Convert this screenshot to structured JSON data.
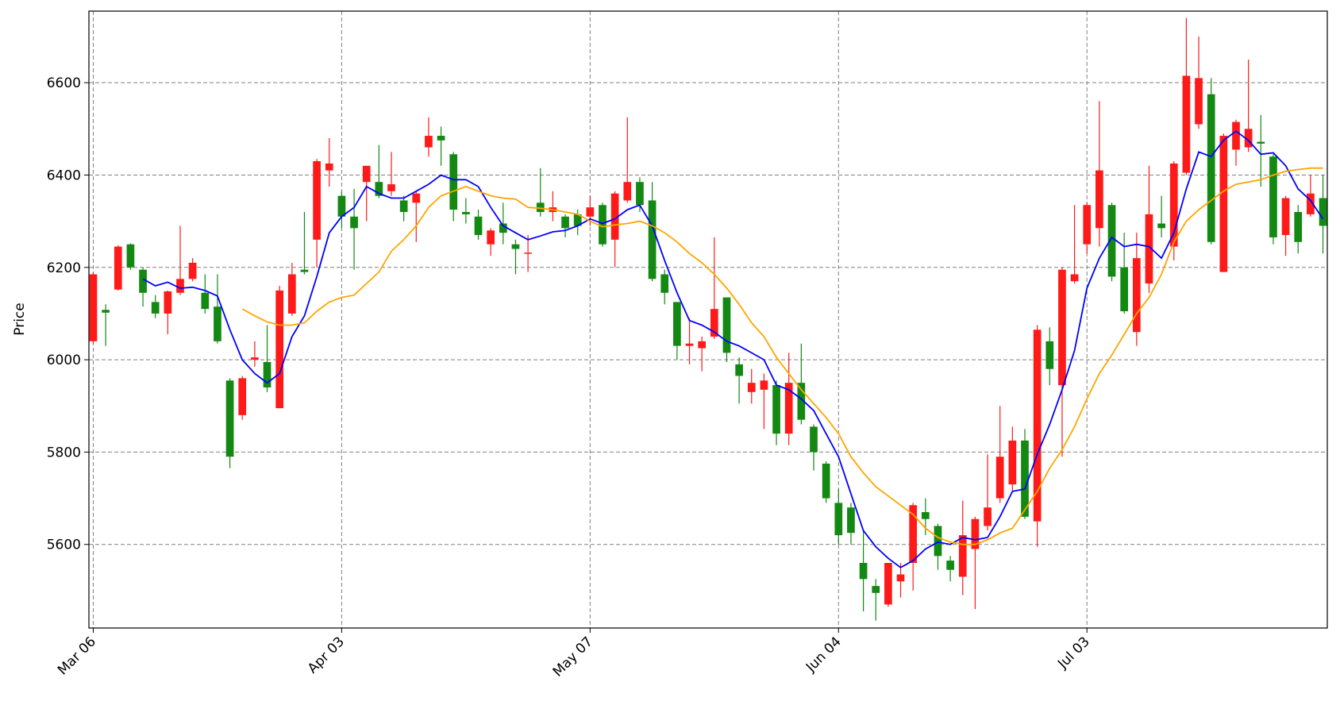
{
  "chart_data": {
    "type": "candlestick",
    "ylabel": "Price",
    "categories": [
      "Mar 06",
      null,
      null,
      null,
      null,
      null,
      null,
      null,
      null,
      null,
      null,
      null,
      null,
      null,
      null,
      null,
      null,
      null,
      null,
      null,
      "Apr 03",
      null,
      null,
      null,
      null,
      null,
      null,
      null,
      null,
      null,
      null,
      null,
      null,
      null,
      null,
      null,
      null,
      null,
      null,
      null,
      "May 07",
      null,
      null,
      null,
      null,
      null,
      null,
      null,
      null,
      null,
      null,
      null,
      null,
      null,
      null,
      null,
      null,
      null,
      null,
      null,
      "Jun 04",
      null,
      null,
      null,
      null,
      null,
      null,
      null,
      null,
      null,
      null,
      null,
      null,
      null,
      null,
      null,
      null,
      null,
      null,
      null,
      "Jul 03",
      null,
      null,
      null,
      null,
      null,
      null,
      null,
      null,
      null,
      null,
      null,
      null,
      null,
      null,
      null,
      null,
      null,
      null,
      null
    ],
    "open": [
      6040,
      6108,
      6152,
      6250,
      6195,
      6125,
      6100,
      6145,
      6175,
      6145,
      6115,
      5955,
      5880,
      6000,
      5995,
      5895,
      6100,
      6195,
      6260,
      6410,
      6355,
      6310,
      6385,
      6385,
      6365,
      6345,
      6340,
      6460,
      6485,
      6445,
      6320,
      6310,
      6250,
      6295,
      6250,
      6230,
      6340,
      6320,
      6310,
      6315,
      6310,
      6335,
      6260,
      6345,
      6385,
      6345,
      6185,
      6125,
      6030,
      6025,
      6050,
      6135,
      5990,
      5930,
      5935,
      5945,
      5840,
      5950,
      5855,
      5775,
      5690,
      5680,
      5560,
      5510,
      5470,
      5520,
      5560,
      5670,
      5640,
      5565,
      5530,
      5590,
      5640,
      5700,
      5730,
      5825,
      5650,
      6040,
      5945,
      6170,
      6250,
      6285,
      6335,
      6200,
      6060,
      6165,
      6295,
      6245,
      6405,
      6510,
      6575,
      6190,
      6455,
      6460,
      6472,
      6440,
      6270,
      6320,
      6315,
      6350
    ],
    "high": [
      6190,
      6120,
      6248,
      6252,
      6200,
      6140,
      6150,
      6290,
      6220,
      6185,
      6185,
      5960,
      5965,
      6040,
      6075,
      6160,
      6210,
      6320,
      6435,
      6480,
      6365,
      6370,
      6420,
      6465,
      6450,
      6355,
      6365,
      6525,
      6505,
      6450,
      6350,
      6325,
      6285,
      6340,
      6260,
      6270,
      6415,
      6365,
      6315,
      6325,
      6355,
      6340,
      6365,
      6525,
      6395,
      6385,
      6195,
      6125,
      6090,
      6050,
      6265,
      6135,
      6005,
      5980,
      5970,
      5955,
      6015,
      6035,
      5860,
      5780,
      5720,
      5690,
      5630,
      5525,
      5560,
      5560,
      5690,
      5700,
      5645,
      5575,
      5695,
      5660,
      5795,
      5900,
      5855,
      5850,
      6075,
      6070,
      6200,
      6335,
      6340,
      6560,
      6340,
      6275,
      6275,
      6420,
      6355,
      6430,
      6740,
      6700,
      6610,
      6490,
      6520,
      6650,
      6530,
      6445,
      6355,
      6335,
      6400,
      6400
    ],
    "low": [
      6035,
      6030,
      6150,
      6195,
      6115,
      6090,
      6055,
      6140,
      6170,
      6100,
      6035,
      5765,
      5870,
      5985,
      5930,
      5895,
      6095,
      6185,
      6200,
      6375,
      6285,
      6195,
      6300,
      6350,
      6355,
      6300,
      6255,
      6440,
      6420,
      6300,
      6295,
      6260,
      6225,
      6250,
      6185,
      6190,
      6310,
      6300,
      6265,
      6270,
      6290,
      6245,
      6200,
      6340,
      6320,
      6170,
      6120,
      6000,
      5990,
      5975,
      6045,
      5995,
      5905,
      5905,
      5850,
      5815,
      5815,
      5860,
      5760,
      5690,
      5600,
      5600,
      5455,
      5435,
      5465,
      5485,
      5500,
      5620,
      5545,
      5520,
      5490,
      5460,
      5630,
      5690,
      5715,
      5655,
      5595,
      5945,
      5790,
      6165,
      6230,
      6245,
      6170,
      6100,
      6030,
      6145,
      6265,
      6215,
      6400,
      6500,
      6250,
      6190,
      6420,
      6450,
      6375,
      6250,
      6225,
      6230,
      6310,
      6230
    ],
    "close": [
      6185,
      6102,
      6245,
      6200,
      6145,
      6100,
      6148,
      6175,
      6210,
      6110,
      6040,
      5790,
      5960,
      6005,
      5940,
      6150,
      6185,
      6190,
      6430,
      6425,
      6310,
      6285,
      6420,
      6355,
      6380,
      6320,
      6360,
      6485,
      6475,
      6325,
      6315,
      6270,
      6280,
      6275,
      6240,
      6232,
      6320,
      6330,
      6285,
      6290,
      6330,
      6250,
      6360,
      6385,
      6335,
      6175,
      6145,
      6030,
      6035,
      6040,
      6110,
      6015,
      5965,
      5950,
      5955,
      5840,
      5950,
      5870,
      5800,
      5700,
      5620,
      5625,
      5525,
      5495,
      5560,
      5535,
      5685,
      5655,
      5575,
      5545,
      5620,
      5655,
      5680,
      5790,
      5825,
      5660,
      6065,
      5980,
      6195,
      6185,
      6335,
      6410,
      6180,
      6105,
      6220,
      6315,
      6285,
      6425,
      6615,
      6610,
      6255,
      6485,
      6515,
      6500,
      6468,
      6265,
      6350,
      6255,
      6360,
      6290
    ],
    "up_color": "#ff1a1a",
    "down_color": "#138913",
    "series": [
      {
        "color": "#0000ff",
        "values": [
          null,
          null,
          null,
          null,
          6175,
          6160,
          6168,
          6155,
          6157,
          6150,
          6138,
          6065,
          6000,
          5970,
          5950,
          5970,
          6050,
          6095,
          6180,
          6275,
          6310,
          6330,
          6375,
          6360,
          6350,
          6350,
          6365,
          6380,
          6400,
          6390,
          6390,
          6375,
          6330,
          6290,
          6275,
          6260,
          6268,
          6277,
          6280,
          6290,
          6305,
          6295,
          6305,
          6325,
          6335,
          6290,
          6215,
          6145,
          6085,
          6075,
          6060,
          6040,
          6030,
          6015,
          6000,
          5945,
          5935,
          5915,
          5890,
          5840,
          5790,
          5710,
          5630,
          5595,
          5570,
          5550,
          5565,
          5590,
          5605,
          5600,
          5615,
          5610,
          5615,
          5660,
          5715,
          5720,
          5795,
          5860,
          5935,
          6020,
          6155,
          6220,
          6265,
          6245,
          6250,
          6245,
          6220,
          6275,
          6370,
          6450,
          6440,
          6475,
          6495,
          6475,
          6445,
          6448,
          6420,
          6370,
          6345,
          6305
        ]
      },
      {
        "color": "#ffa500",
        "values": [
          null,
          null,
          null,
          null,
          null,
          null,
          null,
          null,
          null,
          null,
          null,
          null,
          6110,
          6095,
          6082,
          6075,
          6075,
          6080,
          6105,
          6125,
          6135,
          6140,
          6165,
          6190,
          6235,
          6260,
          6290,
          6330,
          6355,
          6365,
          6375,
          6365,
          6355,
          6350,
          6348,
          6330,
          6328,
          6325,
          6320,
          6315,
          6300,
          6288,
          6292,
          6295,
          6300,
          6290,
          6275,
          6255,
          6230,
          6210,
          6185,
          6155,
          6120,
          6080,
          6050,
          6005,
          5970,
          5935,
          5905,
          5875,
          5840,
          5790,
          5755,
          5725,
          5705,
          5685,
          5665,
          5635,
          5615,
          5605,
          5600,
          5600,
          5610,
          5625,
          5635,
          5675,
          5715,
          5765,
          5805,
          5855,
          5915,
          5970,
          6010,
          6055,
          6100,
          6135,
          6185,
          6255,
          6300,
          6325,
          6345,
          6365,
          6380,
          6385,
          6390,
          6400,
          6408,
          6412,
          6415,
          6415
        ]
      }
    ],
    "ylim": [
      5419,
      6755
    ],
    "yticks": [
      5600,
      5800,
      6000,
      6200,
      6400,
      6600
    ],
    "grid": true
  }
}
